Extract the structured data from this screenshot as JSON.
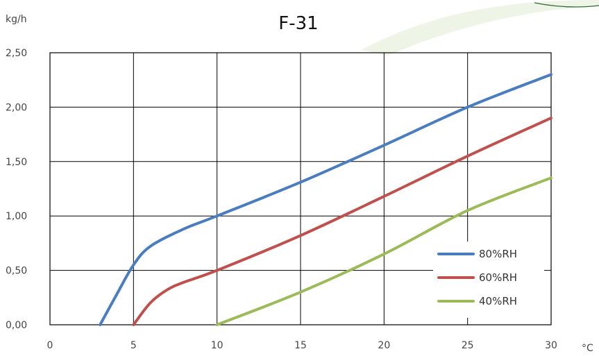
{
  "chart_data": {
    "type": "line",
    "title": "F-31",
    "ylabel": "kg/h",
    "xlabel": "°C",
    "xlim": [
      0,
      30
    ],
    "ylim": [
      0,
      2.5
    ],
    "x_ticks": [
      "0",
      "5",
      "10",
      "15",
      "20",
      "25",
      "30"
    ],
    "y_ticks": [
      "0,00",
      "0,50",
      "1,00",
      "1,50",
      "2,00",
      "2,50"
    ],
    "grid": true,
    "legend_position": "bottom-right",
    "series": [
      {
        "name": "80%RH",
        "color": "#4a7dbf",
        "x": [
          3,
          4,
          5,
          6,
          8,
          10,
          15,
          20,
          25,
          30
        ],
        "y": [
          0,
          0.28,
          0.55,
          0.72,
          0.88,
          1.0,
          1.31,
          1.65,
          2.0,
          2.3
        ]
      },
      {
        "name": "60%RH",
        "color": "#c0504d",
        "x": [
          5,
          6,
          7,
          8,
          10,
          15,
          20,
          25,
          30
        ],
        "y": [
          0,
          0.2,
          0.32,
          0.39,
          0.5,
          0.82,
          1.18,
          1.55,
          1.9
        ]
      },
      {
        "name": "40%RH",
        "color": "#9bbb59",
        "x": [
          10,
          15,
          20,
          25,
          30
        ],
        "y": [
          0,
          0.3,
          0.65,
          1.05,
          1.35
        ]
      }
    ]
  }
}
